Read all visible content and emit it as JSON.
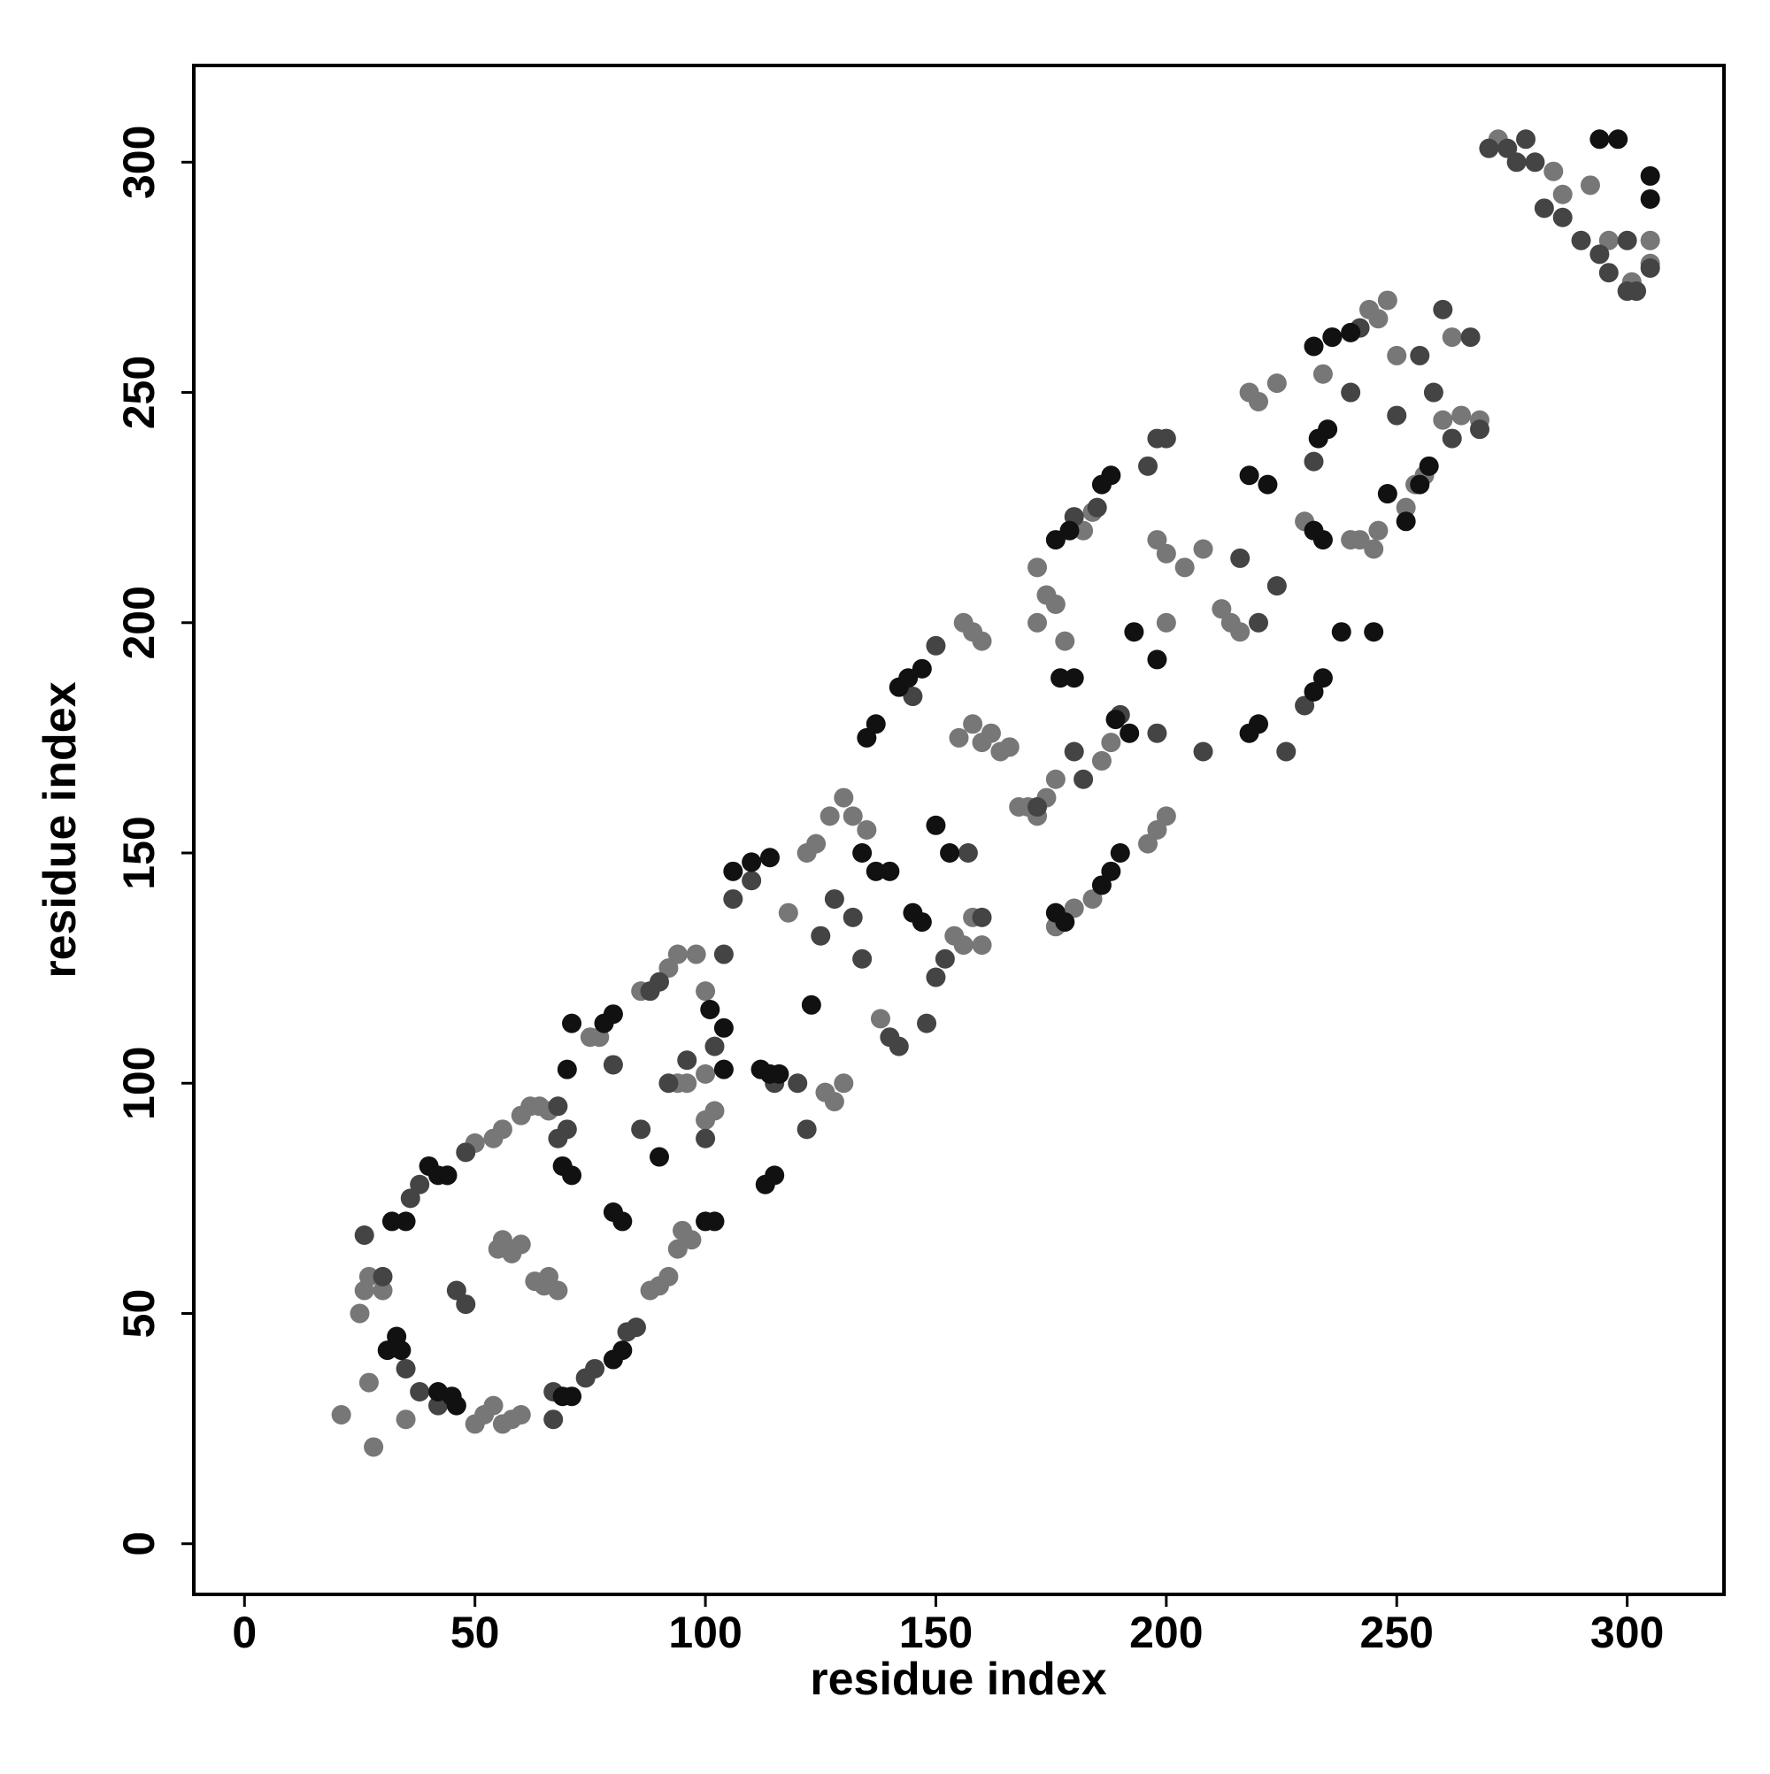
{
  "chart_data": {
    "type": "scatter",
    "x_label": "residue index",
    "y_label": "residue index",
    "xlim": [
      -11,
      321
    ],
    "ylim": [
      -11,
      321
    ],
    "xticks": [
      0,
      50,
      100,
      150,
      200,
      250,
      300
    ],
    "yticks": [
      0,
      50,
      100,
      150,
      200,
      250,
      300
    ],
    "series": [
      {
        "color": "#777777",
        "x": [
          21,
          28,
          27,
          35,
          25,
          26,
          27,
          30,
          50,
          52,
          54,
          56,
          58,
          60,
          55,
          56,
          58,
          60,
          63,
          65,
          66,
          68,
          50,
          54,
          56,
          60,
          62,
          64,
          66,
          88,
          90,
          92,
          94,
          95,
          97,
          75,
          77,
          86,
          92,
          94,
          98,
          100,
          100,
          96,
          94,
          100,
          102,
          126,
          128,
          130,
          122,
          124,
          127,
          130,
          132,
          135,
          118,
          138,
          154,
          156,
          158,
          160,
          155,
          158,
          160,
          162,
          164,
          166,
          168,
          156,
          158,
          160,
          170,
          172,
          174,
          176,
          172,
          174,
          172,
          176,
          178,
          182,
          184,
          200,
          198,
          204,
          208,
          212,
          214,
          216,
          218,
          220,
          224,
          230,
          240,
          242,
          245,
          246,
          252,
          254,
          256,
          244,
          248,
          246,
          250,
          262,
          264,
          268,
          272,
          284,
          286,
          292,
          296,
          305,
          305,
          301,
          234,
          236,
          260,
          198,
          200,
          196,
          184,
          180,
          176,
          186,
          188,
          200
        ],
        "values": [
          28,
          21,
          35,
          27,
          50,
          55,
          58,
          55,
          26,
          28,
          30,
          26,
          27,
          28,
          64,
          66,
          63,
          65,
          57,
          56,
          58,
          55,
          87,
          88,
          90,
          93,
          95,
          95,
          94,
          55,
          56,
          58,
          64,
          68,
          66,
          110,
          110,
          120,
          125,
          128,
          128,
          120,
          102,
          100,
          100,
          92,
          94,
          98,
          96,
          100,
          150,
          152,
          158,
          162,
          158,
          155,
          137,
          114,
          132,
          130,
          136,
          130,
          175,
          178,
          174,
          176,
          172,
          173,
          160,
          200,
          198,
          196,
          160,
          158,
          162,
          166,
          212,
          206,
          200,
          204,
          196,
          220,
          224,
          215,
          218,
          212,
          216,
          203,
          200,
          198,
          250,
          248,
          252,
          222,
          218,
          218,
          216,
          220,
          225,
          230,
          232,
          268,
          270,
          266,
          258,
          262,
          245,
          244,
          305,
          298,
          293,
          295,
          283,
          283,
          278,
          274,
          254,
          262,
          244,
          155,
          158,
          152,
          140,
          138,
          134,
          170,
          174,
          200
        ]
      },
      {
        "color": "#444444",
        "x": [
          26,
          30,
          35,
          38,
          42,
          46,
          48,
          44,
          36,
          38,
          48,
          67,
          67,
          74,
          76,
          83,
          85,
          68,
          70,
          68,
          80,
          86,
          88,
          90,
          92,
          96,
          100,
          102,
          104,
          106,
          110,
          115,
          120,
          122,
          125,
          128,
          132,
          134,
          140,
          142,
          148,
          150,
          152,
          145,
          150,
          157,
          160,
          172,
          180,
          182,
          180,
          185,
          190,
          196,
          198,
          200,
          198,
          208,
          216,
          220,
          224,
          226,
          230,
          232,
          240,
          242,
          250,
          255,
          258,
          260,
          262,
          266,
          268,
          274,
          280,
          282,
          286,
          290,
          294,
          296,
          300,
          302,
          305,
          300,
          270,
          276,
          278
        ],
        "values": [
          67,
          58,
          38,
          33,
          30,
          55,
          52,
          80,
          75,
          78,
          85,
          27,
          33,
          36,
          38,
          46,
          47,
          88,
          90,
          95,
          104,
          90,
          120,
          122,
          100,
          105,
          88,
          108,
          128,
          140,
          144,
          100,
          100,
          90,
          132,
          140,
          136,
          127,
          110,
          108,
          113,
          123,
          127,
          184,
          195,
          150,
          136,
          160,
          172,
          166,
          223,
          225,
          180,
          234,
          240,
          240,
          176,
          172,
          214,
          200,
          208,
          172,
          182,
          235,
          250,
          264,
          245,
          258,
          250,
          268,
          240,
          262,
          242,
          303,
          300,
          290,
          288,
          283,
          280,
          276,
          272,
          272,
          277,
          283,
          303,
          300,
          305
        ]
      },
      {
        "color": "#111111",
        "x": [
          33,
          31,
          34,
          32,
          35,
          40,
          42,
          44,
          42,
          45,
          46,
          69,
          71,
          80,
          82,
          69,
          71,
          80,
          82,
          90,
          100,
          102,
          101,
          104,
          112,
          114,
          116,
          113,
          115,
          123,
          106,
          110,
          114,
          134,
          137,
          140,
          145,
          147,
          135,
          137,
          142,
          144,
          147,
          150,
          153,
          176,
          178,
          186,
          188,
          190,
          177,
          180,
          176,
          179,
          186,
          188,
          189,
          192,
          193,
          198,
          218,
          222,
          220,
          218,
          232,
          234,
          232,
          234,
          233,
          235,
          238,
          245,
          232,
          236,
          240,
          248,
          252,
          255,
          257,
          294,
          298,
          305,
          305,
          78,
          80,
          71,
          70,
          104
        ],
        "values": [
          45,
          42,
          42,
          70,
          70,
          82,
          80,
          80,
          33,
          32,
          30,
          32,
          32,
          40,
          42,
          82,
          80,
          72,
          70,
          84,
          70,
          70,
          116,
          112,
          103,
          102,
          102,
          78,
          80,
          117,
          146,
          148,
          149,
          150,
          146,
          146,
          137,
          135,
          175,
          178,
          186,
          188,
          190,
          156,
          150,
          137,
          135,
          143,
          146,
          150,
          188,
          188,
          218,
          220,
          230,
          232,
          179,
          176,
          198,
          192,
          232,
          230,
          178,
          176,
          220,
          218,
          185,
          188,
          240,
          242,
          198,
          198,
          260,
          262,
          263,
          228,
          222,
          230,
          234,
          305,
          305,
          297,
          292,
          113,
          115,
          113,
          103,
          103
        ]
      }
    ]
  }
}
